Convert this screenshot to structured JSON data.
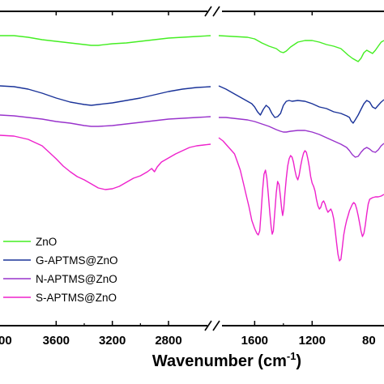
{
  "chart_data": {
    "type": "line",
    "title": "",
    "xlabel": "Wavenumber (cm",
    "xlabel_superscript": "-1",
    "xlabel_suffix": ")",
    "ylabel": "",
    "x_reversed": true,
    "axis_break": true,
    "x_panels": [
      {
        "xlim": [
          4000,
          2500
        ],
        "ticks": [
          3600,
          3200,
          2800
        ],
        "tick_labels": [
          "3600",
          "3200",
          "2800"
        ],
        "edge_label": "00"
      },
      {
        "xlim": [
          1850,
          700
        ],
        "ticks": [
          1600,
          1200
        ],
        "tick_labels": [
          "1600",
          "1200"
        ],
        "edge_label": "80"
      }
    ],
    "grid": false,
    "legend_position": "bottom-left",
    "series": [
      {
        "name": "ZnO",
        "color": "#44ee22",
        "left_points": [
          [
            4000,
            44
          ],
          [
            3900,
            44
          ],
          [
            3800,
            46
          ],
          [
            3700,
            49
          ],
          [
            3600,
            51
          ],
          [
            3500,
            53
          ],
          [
            3400,
            55
          ],
          [
            3350,
            56
          ],
          [
            3300,
            56
          ],
          [
            3200,
            54
          ],
          [
            3100,
            53
          ],
          [
            3000,
            51
          ],
          [
            2900,
            49
          ],
          [
            2800,
            47
          ],
          [
            2700,
            46
          ],
          [
            2600,
            45
          ],
          [
            2500,
            44
          ]
        ],
        "right_points": [
          [
            1850,
            44
          ],
          [
            1750,
            45
          ],
          [
            1650,
            46
          ],
          [
            1600,
            48
          ],
          [
            1550,
            53
          ],
          [
            1500,
            57
          ],
          [
            1450,
            60
          ],
          [
            1420,
            64
          ],
          [
            1400,
            65
          ],
          [
            1380,
            63
          ],
          [
            1350,
            58
          ],
          [
            1300,
            52
          ],
          [
            1250,
            50
          ],
          [
            1200,
            50
          ],
          [
            1150,
            52
          ],
          [
            1100,
            55
          ],
          [
            1050,
            57
          ],
          [
            1000,
            60
          ],
          [
            950,
            68
          ],
          [
            920,
            72
          ],
          [
            900,
            74
          ],
          [
            880,
            76
          ],
          [
            860,
            72
          ],
          [
            840,
            65
          ],
          [
            820,
            62
          ],
          [
            800,
            64
          ],
          [
            780,
            66
          ],
          [
            760,
            62
          ],
          [
            740,
            57
          ],
          [
            720,
            52
          ],
          [
            700,
            50
          ]
        ]
      },
      {
        "name": "G-APTMS@ZnO",
        "color": "#1a3399",
        "left_points": [
          [
            4000,
            106
          ],
          [
            3900,
            107
          ],
          [
            3800,
            110
          ],
          [
            3700,
            115
          ],
          [
            3600,
            121
          ],
          [
            3500,
            126
          ],
          [
            3400,
            129
          ],
          [
            3350,
            130
          ],
          [
            3300,
            129
          ],
          [
            3200,
            127
          ],
          [
            3100,
            124
          ],
          [
            3000,
            121
          ],
          [
            2900,
            117
          ],
          [
            2800,
            113
          ],
          [
            2700,
            110
          ],
          [
            2600,
            108
          ],
          [
            2500,
            107
          ]
        ],
        "right_points": [
          [
            1850,
            106
          ],
          [
            1800,
            110
          ],
          [
            1750,
            115
          ],
          [
            1700,
            120
          ],
          [
            1650,
            125
          ],
          [
            1620,
            128
          ],
          [
            1600,
            132
          ],
          [
            1580,
            138
          ],
          [
            1560,
            142
          ],
          [
            1540,
            135
          ],
          [
            1520,
            130
          ],
          [
            1500,
            133
          ],
          [
            1480,
            140
          ],
          [
            1460,
            145
          ],
          [
            1440,
            144
          ],
          [
            1420,
            140
          ],
          [
            1400,
            130
          ],
          [
            1380,
            125
          ],
          [
            1360,
            124
          ],
          [
            1340,
            125
          ],
          [
            1300,
            124
          ],
          [
            1250,
            125
          ],
          [
            1200,
            128
          ],
          [
            1150,
            132
          ],
          [
            1100,
            134
          ],
          [
            1050,
            138
          ],
          [
            1000,
            140
          ],
          [
            960,
            143
          ],
          [
            940,
            145
          ],
          [
            930,
            149
          ],
          [
            915,
            152
          ],
          [
            900,
            148
          ],
          [
            880,
            142
          ],
          [
            860,
            135
          ],
          [
            840,
            128
          ],
          [
            820,
            124
          ],
          [
            800,
            126
          ],
          [
            780,
            132
          ],
          [
            760,
            134
          ],
          [
            740,
            130
          ],
          [
            720,
            126
          ],
          [
            700,
            123
          ]
        ]
      },
      {
        "name": "N-APTMS@ZnO",
        "color": "#9933cc",
        "left_points": [
          [
            4000,
            142
          ],
          [
            3900,
            143
          ],
          [
            3800,
            145
          ],
          [
            3700,
            147
          ],
          [
            3600,
            150
          ],
          [
            3500,
            152
          ],
          [
            3400,
            155
          ],
          [
            3350,
            156
          ],
          [
            3300,
            156
          ],
          [
            3200,
            155
          ],
          [
            3100,
            153
          ],
          [
            3000,
            151
          ],
          [
            2900,
            149
          ],
          [
            2800,
            147
          ],
          [
            2700,
            146
          ],
          [
            2600,
            145
          ],
          [
            2500,
            144
          ]
        ],
        "right_points": [
          [
            1850,
            145
          ],
          [
            1800,
            145
          ],
          [
            1750,
            146
          ],
          [
            1700,
            147
          ],
          [
            1650,
            148
          ],
          [
            1600,
            150
          ],
          [
            1550,
            153
          ],
          [
            1500,
            156
          ],
          [
            1450,
            160
          ],
          [
            1420,
            162
          ],
          [
            1400,
            163
          ],
          [
            1380,
            163
          ],
          [
            1350,
            162
          ],
          [
            1300,
            161
          ],
          [
            1250,
            161
          ],
          [
            1200,
            163
          ],
          [
            1150,
            166
          ],
          [
            1100,
            170
          ],
          [
            1050,
            174
          ],
          [
            1000,
            178
          ],
          [
            960,
            182
          ],
          [
            940,
            186
          ],
          [
            920,
            191
          ],
          [
            900,
            194
          ],
          [
            880,
            193
          ],
          [
            860,
            188
          ],
          [
            840,
            184
          ],
          [
            820,
            182
          ],
          [
            800,
            184
          ],
          [
            780,
            187
          ],
          [
            760,
            188
          ],
          [
            740,
            185
          ],
          [
            720,
            180
          ],
          [
            700,
            177
          ]
        ]
      },
      {
        "name": "S-APTMS@ZnO",
        "color": "#ee22cc",
        "left_points": [
          [
            4000,
            167
          ],
          [
            3900,
            168
          ],
          [
            3800,
            172
          ],
          [
            3700,
            180
          ],
          [
            3650,
            188
          ],
          [
            3600,
            196
          ],
          [
            3550,
            205
          ],
          [
            3500,
            212
          ],
          [
            3450,
            218
          ],
          [
            3400,
            222
          ],
          [
            3350,
            227
          ],
          [
            3300,
            232
          ],
          [
            3250,
            234
          ],
          [
            3200,
            233
          ],
          [
            3150,
            230
          ],
          [
            3100,
            225
          ],
          [
            3050,
            220
          ],
          [
            3000,
            217
          ],
          [
            2950,
            212
          ],
          [
            2920,
            208
          ],
          [
            2900,
            212
          ],
          [
            2880,
            206
          ],
          [
            2850,
            200
          ],
          [
            2800,
            195
          ],
          [
            2750,
            190
          ],
          [
            2700,
            186
          ],
          [
            2650,
            182
          ],
          [
            2600,
            180
          ],
          [
            2550,
            179
          ],
          [
            2500,
            178
          ]
        ],
        "right_points": [
          [
            1850,
            170
          ],
          [
            1820,
            174
          ],
          [
            1790,
            180
          ],
          [
            1760,
            186
          ],
          [
            1740,
            190
          ],
          [
            1720,
            200
          ],
          [
            1700,
            210
          ],
          [
            1680,
            225
          ],
          [
            1660,
            240
          ],
          [
            1640,
            255
          ],
          [
            1620,
            272
          ],
          [
            1600,
            282
          ],
          [
            1585,
            288
          ],
          [
            1575,
            290
          ],
          [
            1565,
            285
          ],
          [
            1555,
            262
          ],
          [
            1545,
            235
          ],
          [
            1535,
            215
          ],
          [
            1525,
            210
          ],
          [
            1515,
            220
          ],
          [
            1505,
            240
          ],
          [
            1495,
            262
          ],
          [
            1485,
            280
          ],
          [
            1478,
            289
          ],
          [
            1470,
            285
          ],
          [
            1460,
            262
          ],
          [
            1450,
            238
          ],
          [
            1440,
            224
          ],
          [
            1430,
            228
          ],
          [
            1420,
            244
          ],
          [
            1412,
            258
          ],
          [
            1405,
            266
          ],
          [
            1398,
            258
          ],
          [
            1390,
            240
          ],
          [
            1380,
            220
          ],
          [
            1370,
            205
          ],
          [
            1360,
            196
          ],
          [
            1350,
            192
          ],
          [
            1340,
            194
          ],
          [
            1330,
            200
          ],
          [
            1320,
            210
          ],
          [
            1310,
            218
          ],
          [
            1300,
            222
          ],
          [
            1290,
            216
          ],
          [
            1280,
            205
          ],
          [
            1270,
            196
          ],
          [
            1260,
            189
          ],
          [
            1250,
            186
          ],
          [
            1240,
            188
          ],
          [
            1230,
            196
          ],
          [
            1220,
            206
          ],
          [
            1210,
            218
          ],
          [
            1200,
            226
          ],
          [
            1190,
            230
          ],
          [
            1180,
            236
          ],
          [
            1170,
            246
          ],
          [
            1160,
            254
          ],
          [
            1150,
            258
          ],
          [
            1140,
            256
          ],
          [
            1130,
            250
          ],
          [
            1120,
            248
          ],
          [
            1110,
            252
          ],
          [
            1100,
            258
          ],
          [
            1090,
            262
          ],
          [
            1080,
            260
          ],
          [
            1070,
            258
          ],
          [
            1060,
            262
          ],
          [
            1050,
            270
          ],
          [
            1040,
            284
          ],
          [
            1030,
            300
          ],
          [
            1020,
            314
          ],
          [
            1010,
            322
          ],
          [
            1000,
            320
          ],
          [
            990,
            305
          ],
          [
            980,
            290
          ],
          [
            970,
            280
          ],
          [
            960,
            272
          ],
          [
            950,
            266
          ],
          [
            940,
            260
          ],
          [
            930,
            256
          ],
          [
            920,
            252
          ],
          [
            910,
            250
          ],
          [
            900,
            252
          ],
          [
            890,
            258
          ],
          [
            880,
            266
          ],
          [
            870,
            275
          ],
          [
            860,
            285
          ],
          [
            850,
            292
          ],
          [
            840,
            288
          ],
          [
            830,
            278
          ],
          [
            820,
            264
          ],
          [
            810,
            252
          ],
          [
            800,
            246
          ],
          [
            780,
            244
          ],
          [
            760,
            243
          ],
          [
            740,
            243
          ],
          [
            720,
            242
          ],
          [
            700,
            240
          ]
        ]
      }
    ]
  }
}
